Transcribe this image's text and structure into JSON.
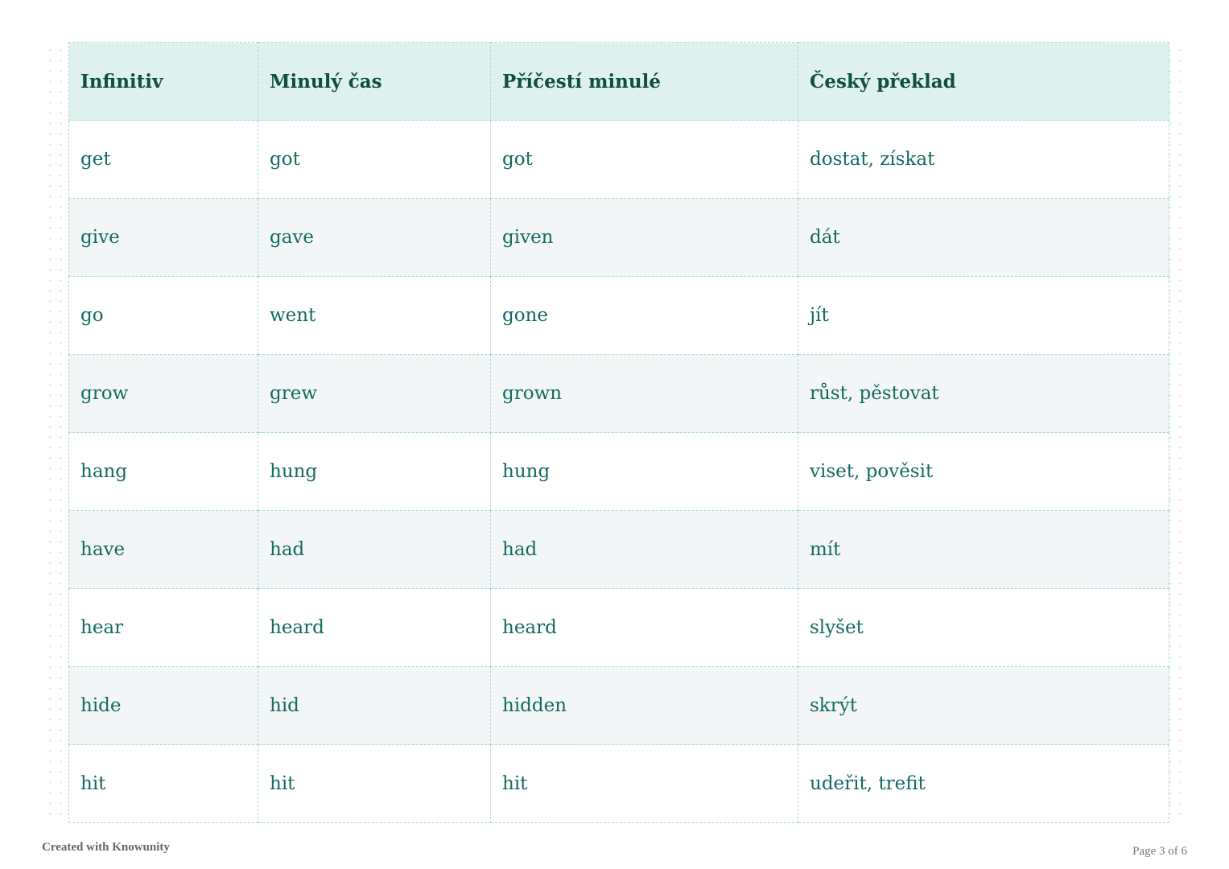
{
  "table": {
    "headers": [
      "Infinitiv",
      "Minulý čas",
      "Příčestí minulé",
      "Český překlad"
    ],
    "rows": [
      [
        "get",
        "got",
        "got",
        "dostat, získat"
      ],
      [
        "give",
        "gave",
        "given",
        "dát"
      ],
      [
        "go",
        "went",
        "gone",
        "jít"
      ],
      [
        "grow",
        "grew",
        "grown",
        "růst, pěstovat"
      ],
      [
        "hang",
        "hung",
        "hung",
        "viset, pověsit"
      ],
      [
        "have",
        "had",
        "had",
        "mít"
      ],
      [
        "hear",
        "heard",
        "heard",
        "slyšet"
      ],
      [
        "hide",
        "hid",
        "hidden",
        "skrýt"
      ],
      [
        "hit",
        "hit",
        "hit",
        "udeřit, trefit"
      ]
    ]
  },
  "footer": {
    "credit": "Created with Knowunity",
    "page": "Page 3 of 6"
  },
  "colors": {
    "header_bg": "#dff1ee",
    "text": "#136b60",
    "header_text": "#0f4f43",
    "border": "#a8dad3",
    "alt_row": "#f3f6f7"
  }
}
